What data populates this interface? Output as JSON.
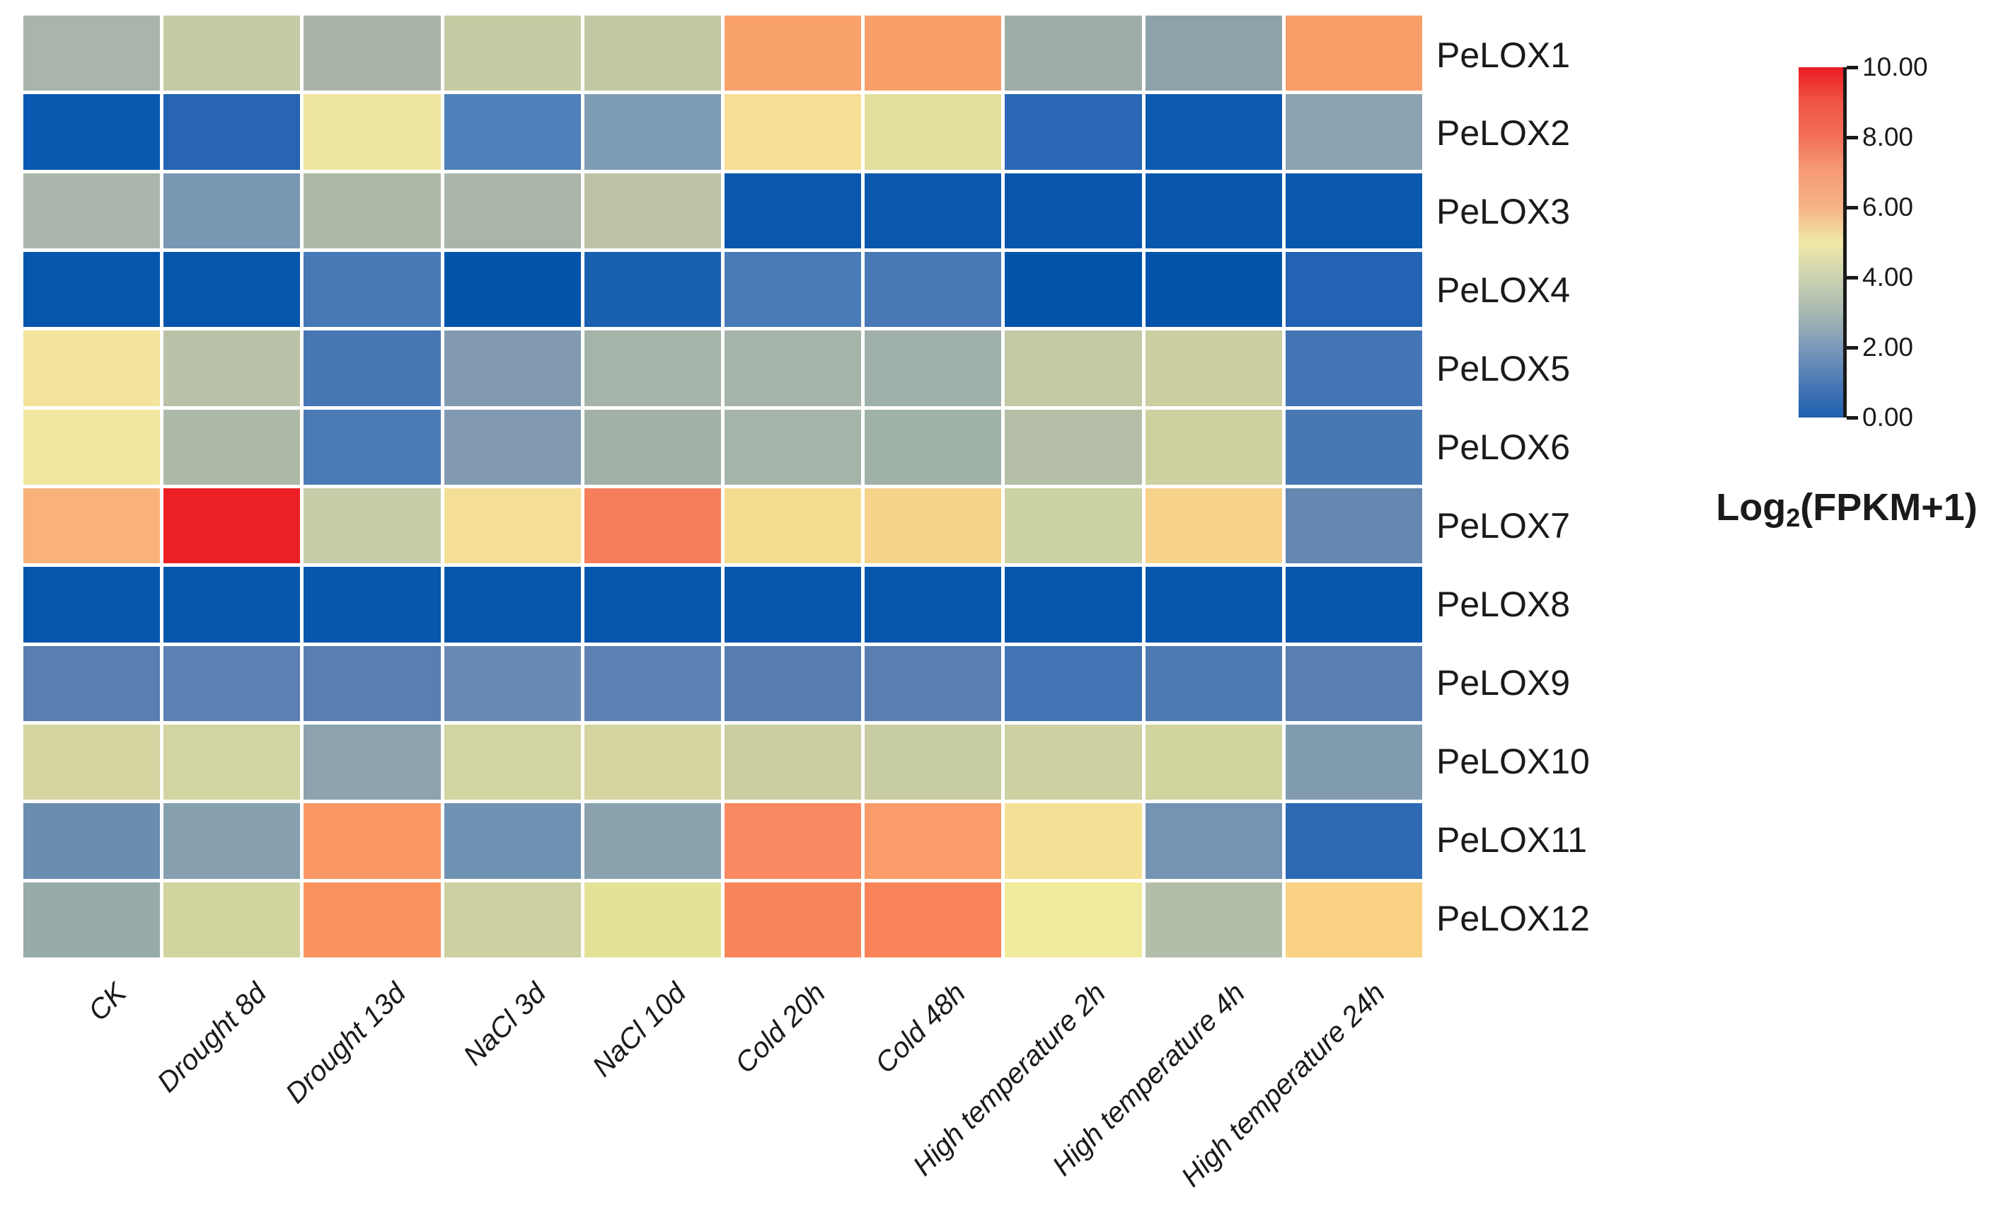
{
  "figure": {
    "background": "#ffffff",
    "text_color": "#1a1a1a"
  },
  "chart_data": {
    "type": "heatmap",
    "title": "",
    "rows": [
      "PeLOX1",
      "PeLOX2",
      "PeLOX3",
      "PeLOX4",
      "PeLOX5",
      "PeLOX6",
      "PeLOX7",
      "PeLOX8",
      "PeLOX9",
      "PeLOX10",
      "PeLOX11",
      "PeLOX12"
    ],
    "columns": [
      "CK",
      "Drought 8d",
      "Drought 13d",
      "NaCl 3d",
      "NaCl 10d",
      "Cold 20h",
      "Cold 48h",
      "High temperature 2h",
      "High temperature 4h",
      "High temperature 24h"
    ],
    "values": [
      [
        3.1,
        4.0,
        3.1,
        4.0,
        3.9,
        6.5,
        6.5,
        2.9,
        2.6,
        6.5
      ],
      [
        0.3,
        0.9,
        4.8,
        1.6,
        2.3,
        5.3,
        4.5,
        1.0,
        0.4,
        2.5
      ],
      [
        3.1,
        2.1,
        3.2,
        3.1,
        3.7,
        0.3,
        0.3,
        0.3,
        0.3,
        0.3
      ],
      [
        0.2,
        0.2,
        1.5,
        0.1,
        0.7,
        1.6,
        1.5,
        0.1,
        0.1,
        0.9
      ],
      [
        4.9,
        3.6,
        1.5,
        2.3,
        3.1,
        3.1,
        3.0,
        3.8,
        4.0,
        1.4
      ],
      [
        4.9,
        3.3,
        1.6,
        2.3,
        3.0,
        3.1,
        3.0,
        3.5,
        4.1,
        1.5
      ],
      [
        6.7,
        9.9,
        3.9,
        5.0,
        7.2,
        5.2,
        5.6,
        4.1,
        5.6,
        1.9
      ],
      [
        0.2,
        0.2,
        0.3,
        0.2,
        0.2,
        0.3,
        0.2,
        0.2,
        0.2,
        0.3
      ],
      [
        1.6,
        1.6,
        1.6,
        1.9,
        1.6,
        1.5,
        1.6,
        1.1,
        1.4,
        1.6
      ],
      [
        4.2,
        4.1,
        2.6,
        4.1,
        4.2,
        4.0,
        3.9,
        4.0,
        4.1,
        2.4
      ],
      [
        2.0,
        2.5,
        6.7,
        2.1,
        2.5,
        7.0,
        6.6,
        4.9,
        2.2,
        1.0
      ],
      [
        2.8,
        4.1,
        7.0,
        4.0,
        4.5,
        7.1,
        7.1,
        4.8,
        3.3,
        5.6
      ]
    ],
    "cell_colors": [
      [
        "#A9B5AB",
        "#C5CBA4",
        "#A9B4A6",
        "#C6CBA4",
        "#C3C7A3",
        "#F9A26C",
        "#F9A06A",
        "#9EAEA7",
        "#8EA2A9",
        "#F99D69"
      ],
      [
        "#0A59B1",
        "#2765B3",
        "#EFE5A2",
        "#4F7FBA",
        "#7F9CB5",
        "#F8DD94",
        "#E2DF9F",
        "#2A68B5",
        "#0C5BB1",
        "#8CA4B1"
      ],
      [
        "#AAB6AB",
        "#7A97B3",
        "#ADB8A7",
        "#A9B5A9",
        "#BCC3A4",
        "#0A58AE",
        "#0A58AE",
        "#0957AD",
        "#0957AD",
        "#0A58AE"
      ],
      [
        "#0656AC",
        "#0656AC",
        "#4679B5",
        "#0254AB",
        "#1A60B1",
        "#497BB6",
        "#4879B5",
        "#0254AB",
        "#0254AB",
        "#2263B3"
      ],
      [
        "#F2E49B",
        "#B9C2A6",
        "#4677B4",
        "#829BB1",
        "#A5B3A9",
        "#A5B3A8",
        "#9FB0A8",
        "#C2C9A4",
        "#CACEA1",
        "#4375B4"
      ],
      [
        "#F2E69E",
        "#ADBAA8",
        "#4B7BB6",
        "#819AB1",
        "#A2B1A8",
        "#A5B4A8",
        "#A0B1A8",
        "#B5BFA7",
        "#CDD1A0",
        "#4878B4"
      ],
      [
        "#F9B27A",
        "#EB2025",
        "#C5CDA9",
        "#F5DF96",
        "#F77E5B",
        "#F6DC90",
        "#F7D48C",
        "#CDD2A4",
        "#F7D28A",
        "#6488AF"
      ],
      [
        "#0656AC",
        "#0656AC",
        "#0757AD",
        "#0656AC",
        "#0656AC",
        "#0757AD",
        "#0656AC",
        "#0656AC",
        "#0656AC",
        "#0757AD"
      ],
      [
        "#5A7EB0",
        "#5C80B1",
        "#5A7EB0",
        "#698BB3",
        "#5C80B1",
        "#567CB0",
        "#5A7EB0",
        "#4273B2",
        "#4E79B1",
        "#5A7EB0"
      ],
      [
        "#D4D5A0",
        "#D2D4A1",
        "#8CA3AF",
        "#D2D4A1",
        "#D4D5A0",
        "#CACEA1",
        "#C8CCA2",
        "#CDD0A1",
        "#D2D4A0",
        "#819CAF"
      ],
      [
        "#6A8DB0",
        "#87A0AF",
        "#F99765",
        "#7092B2",
        "#8AA2AD",
        "#F98960",
        "#F99C6A",
        "#F5E196",
        "#7594B4",
        "#2E6AB4"
      ],
      [
        "#97ABA9",
        "#D2D4A0",
        "#F9925F",
        "#CDD0A0",
        "#E4E297",
        "#F9865B",
        "#F98459",
        "#F0EB9C",
        "#B2BEAA",
        "#F9D283"
      ]
    ],
    "colorbar": {
      "title_main": "Log",
      "title_sub": "2",
      "title_rest": "(FPKM+1)",
      "ticks": [
        "10.00",
        "8.00",
        "6.00",
        "4.00",
        "2.00",
        "0.00"
      ],
      "min": 0,
      "max": 10,
      "legend_position": "right",
      "gradient": [
        {
          "pos": 0,
          "color": "#EC1C24"
        },
        {
          "pos": 10,
          "color": "#F05545"
        },
        {
          "pos": 20,
          "color": "#F3705B"
        },
        {
          "pos": 30,
          "color": "#F69C77"
        },
        {
          "pos": 40,
          "color": "#F7B286"
        },
        {
          "pos": 50,
          "color": "#F0E9A8"
        },
        {
          "pos": 60,
          "color": "#CBD2B0"
        },
        {
          "pos": 70,
          "color": "#A8B9B3"
        },
        {
          "pos": 80,
          "color": "#7B98B9"
        },
        {
          "pos": 90,
          "color": "#4B7AB5"
        },
        {
          "pos": 100,
          "color": "#1E5FAF"
        }
      ]
    }
  }
}
